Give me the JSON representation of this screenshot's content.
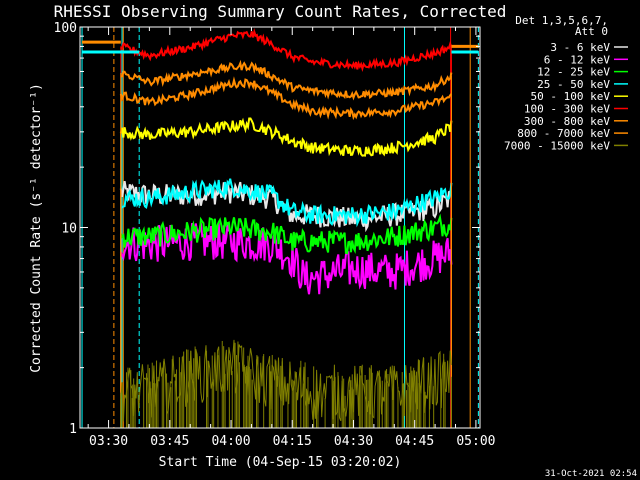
{
  "chart_data": {
    "type": "line",
    "title": "RHESSI Observing Summary Count Rates, Corrected",
    "xlabel": "Start Time (04-Sep-15 03:20:02)",
    "ylabel": "Corrected Count Rate (s⁻¹ detector⁻¹)",
    "x_unit": "minutes since 03:20:02",
    "xlim": [
      3,
      101
    ],
    "ylim": [
      1,
      100
    ],
    "y_scale": "log",
    "x_ticks": [
      {
        "label": "03:30",
        "value": 10
      },
      {
        "label": "03:45",
        "value": 25
      },
      {
        "label": "04:00",
        "value": 40
      },
      {
        "label": "04:15",
        "value": 55
      },
      {
        "label": "04:30",
        "value": 70
      },
      {
        "label": "04:45",
        "value": 85
      },
      {
        "label": "05:00",
        "value": 100
      }
    ],
    "y_ticks": [
      {
        "label": "1",
        "value": 1
      },
      {
        "label": "10",
        "value": 10
      },
      {
        "label": "100",
        "value": 100
      }
    ],
    "legend_header": [
      "Det 1,3,5,6,7,",
      "Att 0"
    ],
    "legend_placement": "right",
    "data_start": 13,
    "data_end": 94,
    "series": [
      {
        "name": "3 - 6 keV",
        "color": "#e8e8e8",
        "x": [
          13,
          20,
          30,
          40,
          50,
          55,
          60,
          70,
          80,
          90,
          94
        ],
        "y": [
          15,
          14.5,
          14.5,
          15,
          14,
          11.5,
          11.5,
          11,
          11.5,
          12.5,
          14
        ],
        "noise": 0.06
      },
      {
        "name": "6 - 12 keV",
        "color": "#ff00ff",
        "x": [
          13,
          20,
          30,
          40,
          50,
          55,
          58,
          70,
          80,
          90,
          94
        ],
        "y": [
          8.5,
          8.2,
          8.5,
          8.5,
          8.3,
          7,
          5.5,
          6.2,
          6,
          7,
          7.5
        ],
        "noise": 0.1
      },
      {
        "name": "12 - 25 keV",
        "color": "#00ff00",
        "x": [
          13,
          20,
          30,
          40,
          50,
          55,
          60,
          70,
          80,
          90,
          94
        ],
        "y": [
          9,
          9,
          9.5,
          10,
          9.5,
          8.5,
          8.5,
          8.5,
          9,
          10,
          10.5
        ],
        "noise": 0.06
      },
      {
        "name": "25 - 50 keV",
        "color": "#00ffff",
        "x": [
          13,
          20,
          30,
          40,
          50,
          55,
          60,
          70,
          80,
          90,
          94
        ],
        "y": [
          14,
          14,
          15,
          16,
          14.5,
          12,
          11.5,
          11.5,
          12,
          14,
          15.5
        ],
        "noise": 0.05
      },
      {
        "name": "50 - 100 keV",
        "color": "#ffff00",
        "x": [
          13,
          20,
          30,
          40,
          45,
          50,
          55,
          60,
          70,
          80,
          90,
          94
        ],
        "y": [
          30,
          29,
          30,
          32,
          33,
          30,
          27,
          25,
          24,
          25,
          28,
          32
        ],
        "noise": 0.03
      },
      {
        "name": "100 - 300 keV",
        "color": "#ff0000",
        "x": [
          13,
          20,
          30,
          40,
          45,
          50,
          55,
          60,
          70,
          80,
          90,
          94
        ],
        "y": [
          80,
          72,
          79,
          90,
          92,
          82,
          71,
          67,
          64,
          66,
          74,
          80
        ],
        "noise": 0.02
      },
      {
        "name": "300 - 800 keV",
        "color": "#ff8c00",
        "x": [
          13,
          20,
          30,
          40,
          45,
          50,
          55,
          60,
          70,
          80,
          90,
          94
        ],
        "y": [
          46,
          42,
          46,
          52,
          53,
          47,
          41,
          38,
          37,
          38,
          42,
          45
        ],
        "noise": 0.02
      },
      {
        "name": "800 - 7000 keV",
        "color": "#ff8c00",
        "x": [
          13,
          20,
          30,
          40,
          45,
          50,
          55,
          60,
          70,
          80,
          90,
          94
        ],
        "y": [
          59,
          53,
          58,
          63,
          64,
          57,
          50,
          48,
          46,
          47,
          51,
          57
        ],
        "noise": 0.02
      },
      {
        "name": "7000 - 15000 keV",
        "color": "#808000",
        "x": [
          13,
          20,
          30,
          40,
          50,
          60,
          70,
          80,
          90,
          94
        ],
        "y": [
          1.5,
          1.5,
          1.8,
          2,
          1.7,
          1.5,
          1.5,
          1.5,
          1.7,
          1.8
        ],
        "noise": 0.15
      }
    ],
    "vertical_markers": [
      {
        "x": 3.5,
        "color": "#00ffff",
        "style": "solid"
      },
      {
        "x": 11.3,
        "color": "#ff8c00",
        "style": "dashed"
      },
      {
        "x": 13.3,
        "color": "#00ffff",
        "style": "solid"
      },
      {
        "x": 13.6,
        "color": "#ff8c00",
        "style": "solid"
      },
      {
        "x": 17.5,
        "color": "#00ffff",
        "style": "dashed"
      },
      {
        "x": 82.5,
        "color": "#00ffff",
        "style": "solid"
      },
      {
        "x": 93.8,
        "color": "#ff0000",
        "style": "solid"
      },
      {
        "x": 98.6,
        "color": "#ff8c00",
        "style": "solid"
      },
      {
        "x": 100.6,
        "color": "#00ffff",
        "style": "dashed"
      }
    ],
    "flag_lines": [
      {
        "x_start": 3.5,
        "x_end": 17.5,
        "y": 75,
        "color": "#00ffff"
      },
      {
        "x_start": 94,
        "x_end": 100.6,
        "y": 75,
        "color": "#00ffff"
      },
      {
        "x_start": 3.5,
        "x_end": 13,
        "y": 84,
        "color": "#ff8c00"
      },
      {
        "x_start": 94,
        "x_end": 100.6,
        "y": 80,
        "color": "#ff8c00"
      }
    ],
    "grid": false,
    "footer_date": "31-Oct-2021 02:54"
  }
}
